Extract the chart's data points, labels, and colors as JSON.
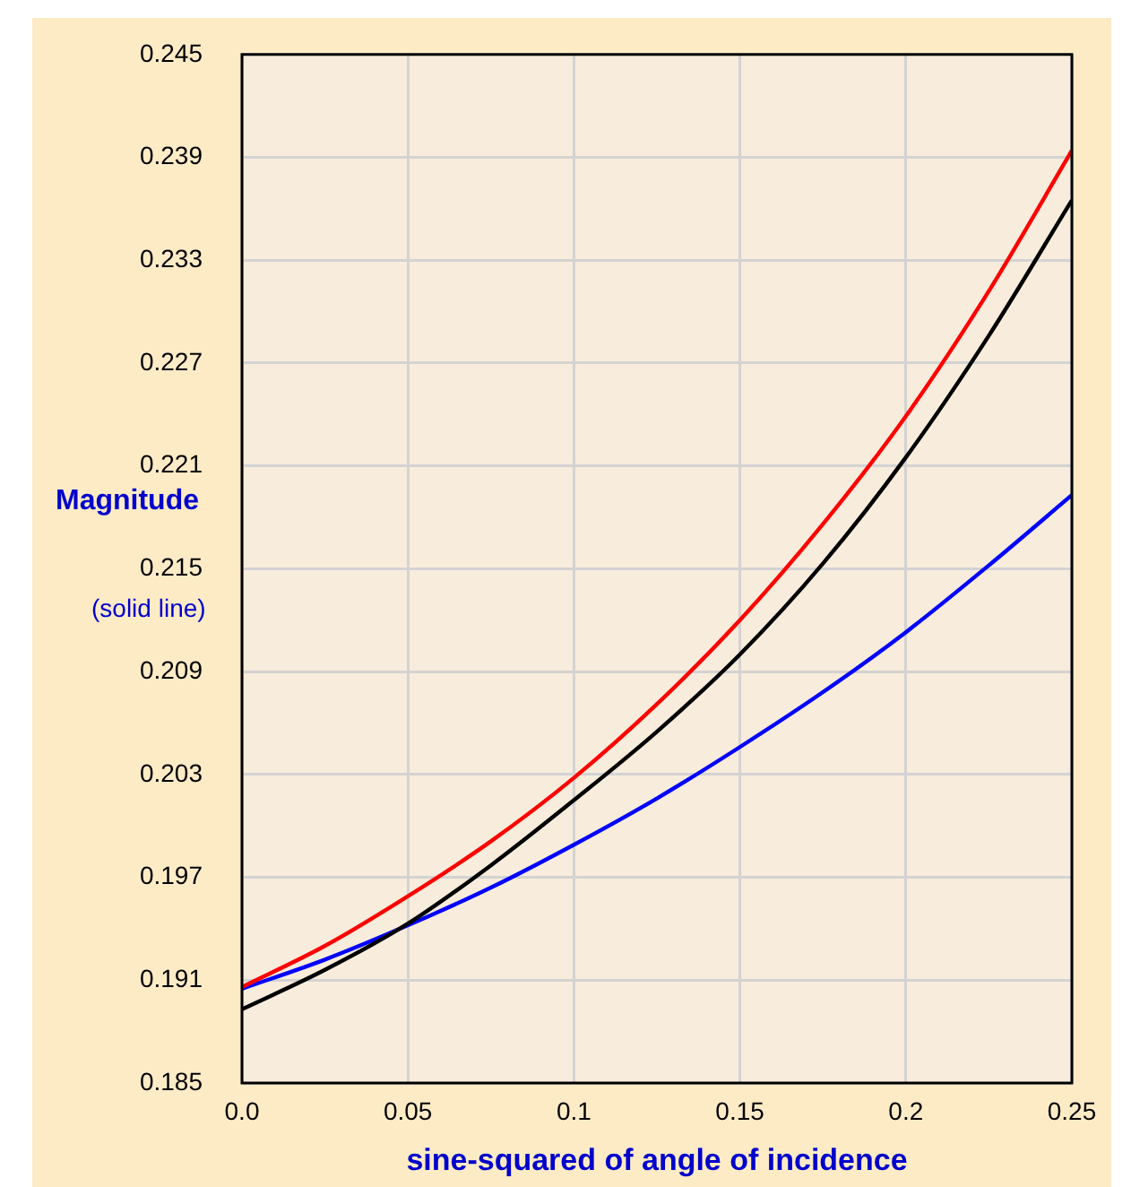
{
  "chart_data": {
    "type": "line",
    "xlabel": "sine-squared of angle of incidence",
    "ylabel": "Magnitude",
    "annotations": [
      "(solid line)"
    ],
    "x": [
      0,
      0.025,
      0.05,
      0.075,
      0.1,
      0.125,
      0.15,
      0.175,
      0.2,
      0.225,
      0.25
    ],
    "series": [
      {
        "color": "#ff0000",
        "values": [
          0.1906,
          0.193,
          0.1959,
          0.1991,
          0.2028,
          0.2071,
          0.212,
          0.2176,
          0.2239,
          0.2312,
          0.2394
        ]
      },
      {
        "color": "#000000",
        "values": [
          0.1893,
          0.1916,
          0.1943,
          0.1977,
          0.2015,
          0.2055,
          0.21,
          0.2153,
          0.2215,
          0.2286,
          0.2365
        ]
      },
      {
        "color": "#0000ff",
        "values": [
          0.1905,
          0.1922,
          0.1942,
          0.1964,
          0.1989,
          0.2016,
          0.2046,
          0.2078,
          0.2113,
          0.2152,
          0.2193
        ]
      }
    ],
    "xlim": [
      0,
      0.25
    ],
    "xticks": [
      {
        "value": 0,
        "label": "0.0"
      },
      0.05,
      0.1,
      0.15,
      0.2,
      0.25
    ],
    "ylim": [
      0.185,
      0.245
    ],
    "yticks": [
      0.185,
      0.191,
      0.197,
      0.203,
      0.209,
      0.215,
      0.221,
      0.227,
      0.233,
      0.239,
      0.245
    ],
    "grid": true,
    "legend": false,
    "marker": "none",
    "line_style": "solid"
  }
}
